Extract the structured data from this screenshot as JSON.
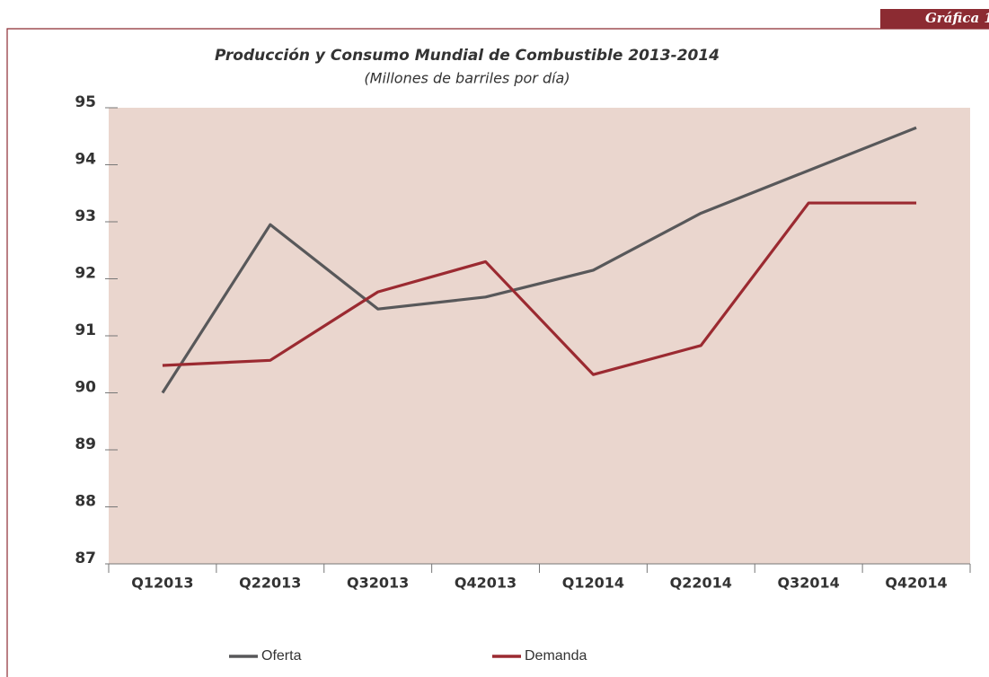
{
  "tab": "Gráfica 1",
  "chart_data": {
    "type": "line",
    "title": "Producción y Consumo Mundial de Combustible 2013-2014",
    "subtitle": "(Millones de barriles por día)",
    "categories": [
      "Q12013",
      "Q22013",
      "Q32013",
      "Q42013",
      "Q12014",
      "Q22014",
      "Q32014",
      "Q42014"
    ],
    "series": [
      {
        "name": "Oferta",
        "color": "#58585a",
        "values": [
          90.0,
          92.95,
          91.47,
          91.68,
          92.15,
          93.15,
          93.9,
          94.65
        ]
      },
      {
        "name": "Demanda",
        "color": "#9b2a31",
        "values": [
          90.48,
          90.57,
          91.77,
          92.3,
          90.32,
          90.83,
          93.33,
          93.33
        ]
      }
    ],
    "ylim": [
      87,
      95
    ],
    "yticks": [
      87,
      88,
      89,
      90,
      91,
      92,
      93,
      94,
      95
    ],
    "plot_background": "#ead6ce",
    "legend": "bottom"
  }
}
